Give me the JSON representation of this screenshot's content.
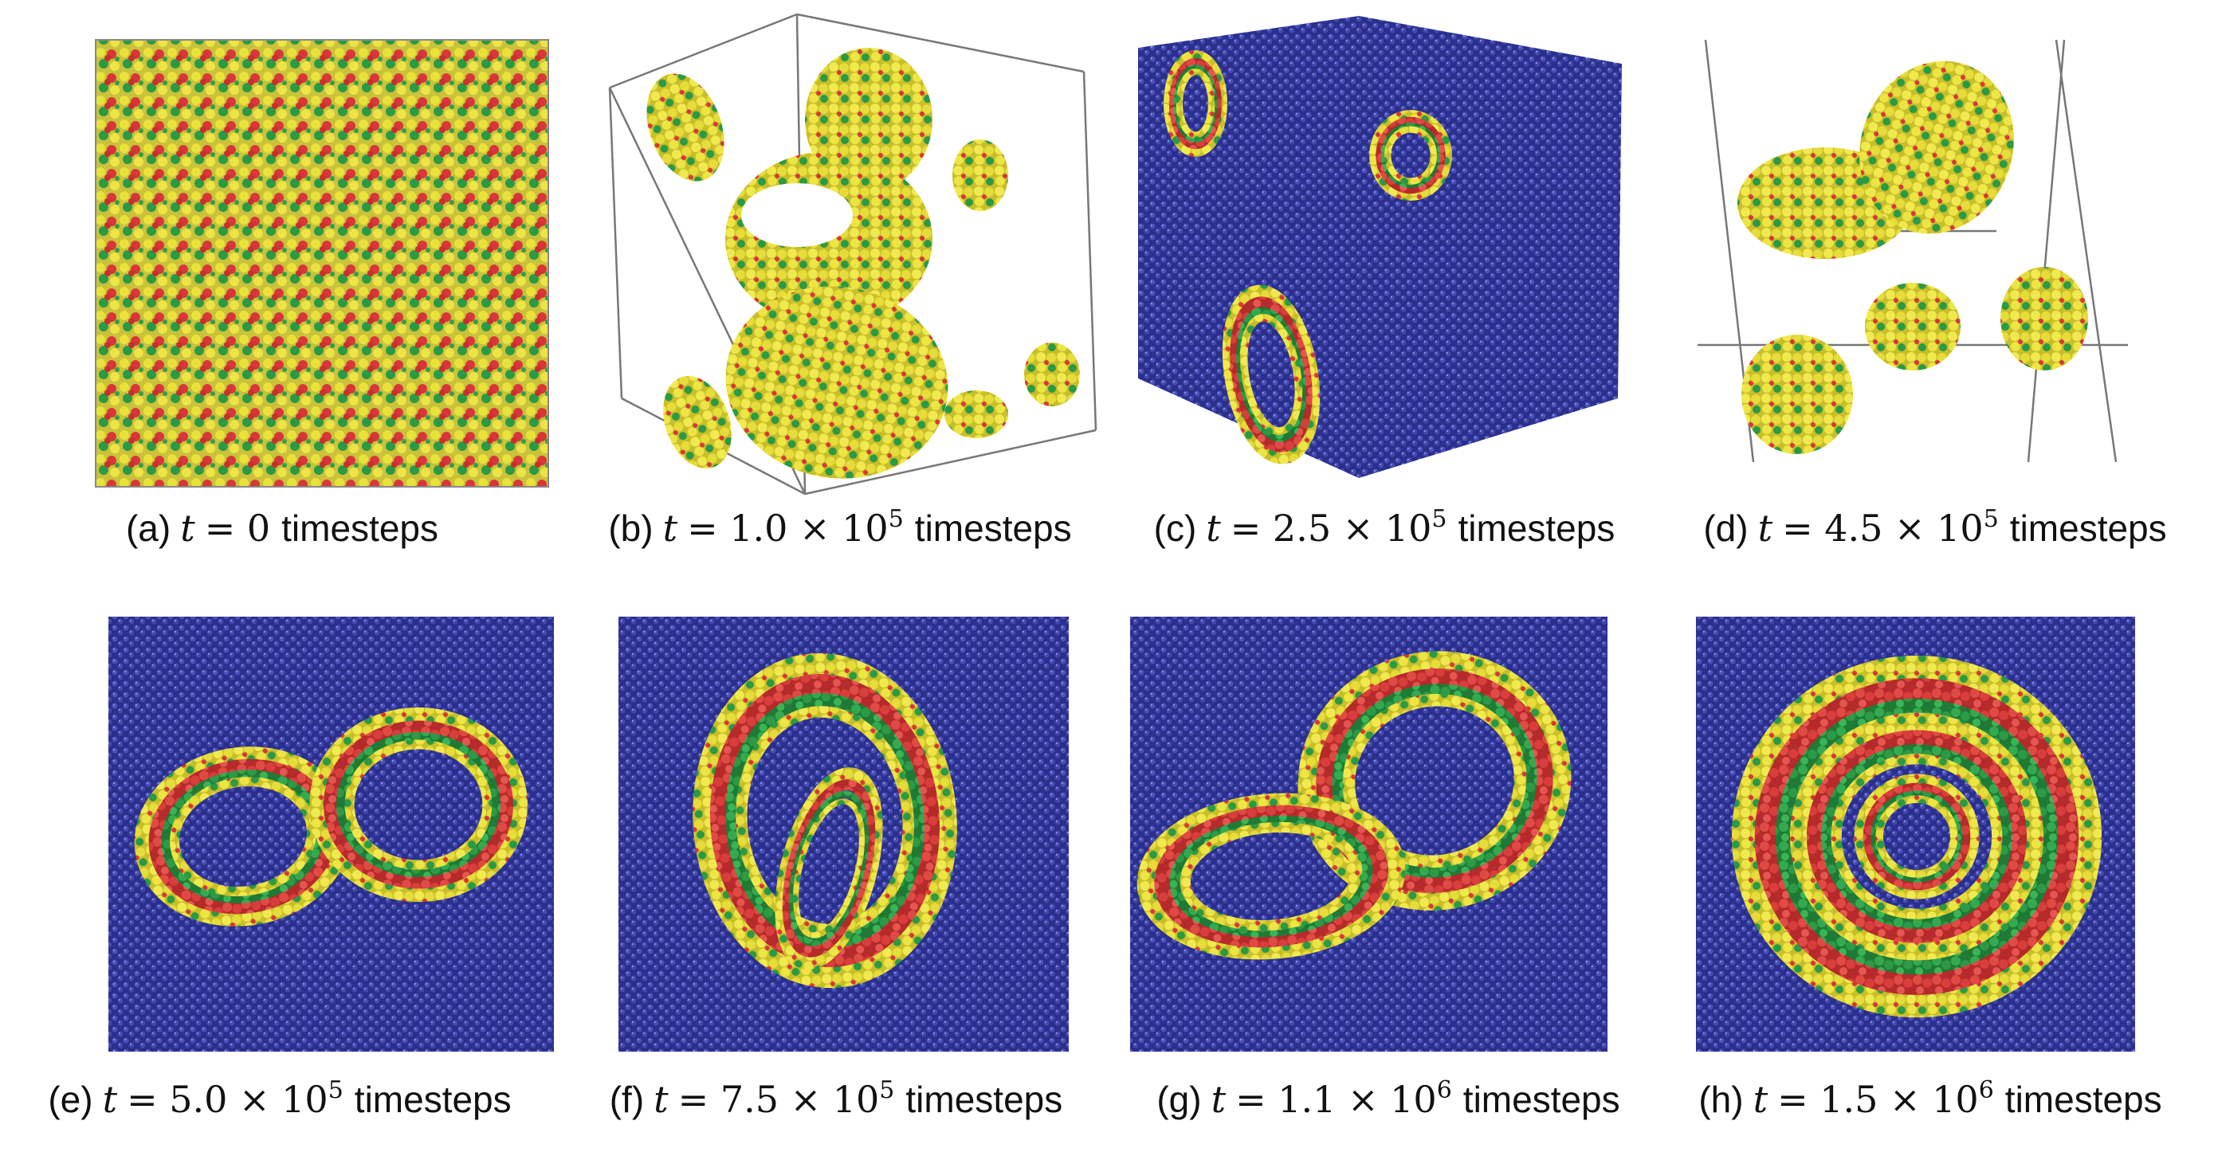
{
  "figure": {
    "panels": [
      {
        "label": "(a)",
        "var": "t",
        "expr": "= 0",
        "unit": "timesteps"
      },
      {
        "label": "(b)",
        "var": "t",
        "expr": "= 1.0 × 10",
        "exp": "5",
        "unit": "timesteps"
      },
      {
        "label": "(c)",
        "var": "t",
        "expr": "= 2.5 × 10",
        "exp": "5",
        "unit": "timesteps"
      },
      {
        "label": "(d)",
        "var": "t",
        "expr": "= 4.5 × 10",
        "exp": "5",
        "unit": "timesteps"
      },
      {
        "label": "(e)",
        "var": "t",
        "expr": "= 5.0 × 10",
        "exp": "5",
        "unit": "timesteps"
      },
      {
        "label": "(f)",
        "var": "t",
        "expr": "= 7.5 × 10",
        "exp": "5",
        "unit": "timesteps"
      },
      {
        "label": "(g)",
        "var": "t",
        "expr": "= 1.1 × 10",
        "exp": "6",
        "unit": "timesteps"
      },
      {
        "label": "(h)",
        "var": "t",
        "expr": "= 1.5 × 10",
        "exp": "6",
        "unit": "timesteps"
      }
    ]
  }
}
